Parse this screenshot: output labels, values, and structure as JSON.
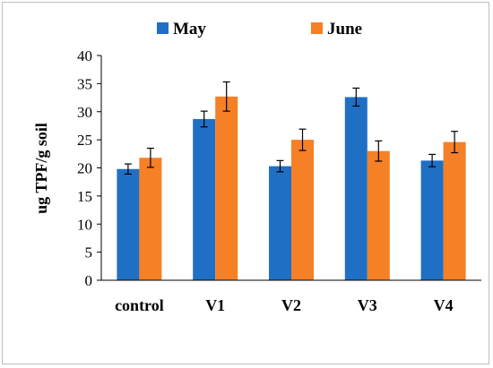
{
  "chart_data": {
    "type": "bar",
    "categories": [
      "control",
      "V1",
      "V2",
      "V3",
      "V4"
    ],
    "series": [
      {
        "name": "May",
        "color": "#1f6fc5",
        "values": [
          19.8,
          28.7,
          20.3,
          32.6,
          21.3
        ],
        "errors": [
          0.9,
          1.4,
          1.0,
          1.6,
          1.1
        ]
      },
      {
        "name": "June",
        "color": "#f58025",
        "values": [
          21.8,
          32.7,
          25.0,
          23.0,
          24.6
        ],
        "errors": [
          1.7,
          2.6,
          1.9,
          1.8,
          1.9
        ]
      }
    ],
    "ylabel": "ug TPF/g soil",
    "xlabel": "",
    "ylim": [
      0,
      40
    ],
    "yticks": [
      0,
      5,
      10,
      15,
      20,
      25,
      30,
      35,
      40
    ],
    "grid": false,
    "legend_position": "top"
  }
}
